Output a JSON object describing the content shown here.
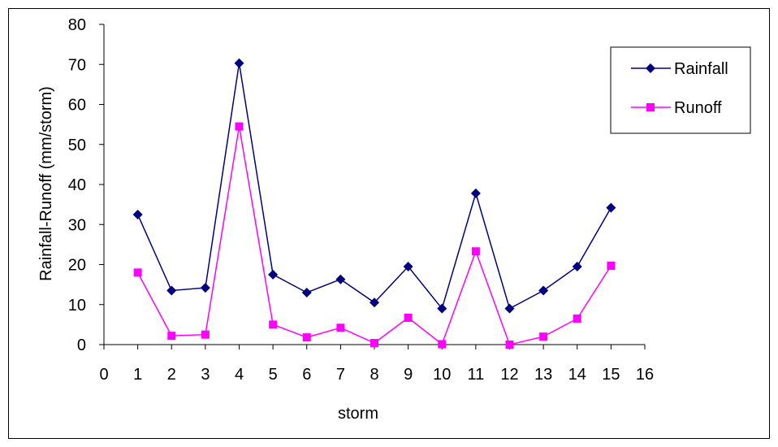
{
  "chart_data": {
    "type": "line",
    "title": "",
    "xlabel": "storm",
    "ylabel": "Rainfall-Runoff (mm/storm)",
    "xlim": [
      0,
      16
    ],
    "ylim": [
      0,
      80
    ],
    "xticks": [
      0,
      1,
      2,
      3,
      4,
      5,
      6,
      7,
      8,
      9,
      10,
      11,
      12,
      13,
      14,
      15,
      16
    ],
    "yticks": [
      0,
      10,
      20,
      30,
      40,
      50,
      60,
      70,
      80
    ],
    "grid": false,
    "legend_position": "top-right",
    "x": [
      1,
      2,
      3,
      4,
      5,
      6,
      7,
      8,
      9,
      10,
      11,
      12,
      13,
      14,
      15
    ],
    "series": [
      {
        "name": "Rainfall",
        "color": "#000080",
        "marker": "diamond",
        "values": [
          32.5,
          13.5,
          14.2,
          70.3,
          17.5,
          13.0,
          16.3,
          10.5,
          19.5,
          9.0,
          37.8,
          9.0,
          13.5,
          19.5,
          34.2
        ]
      },
      {
        "name": "Runoff",
        "color": "#ff00ff",
        "marker": "square",
        "values": [
          18.0,
          2.2,
          2.5,
          54.5,
          5.0,
          1.8,
          4.2,
          0.4,
          6.7,
          0.1,
          23.3,
          0.0,
          2.0,
          6.5,
          19.7
        ]
      }
    ]
  }
}
